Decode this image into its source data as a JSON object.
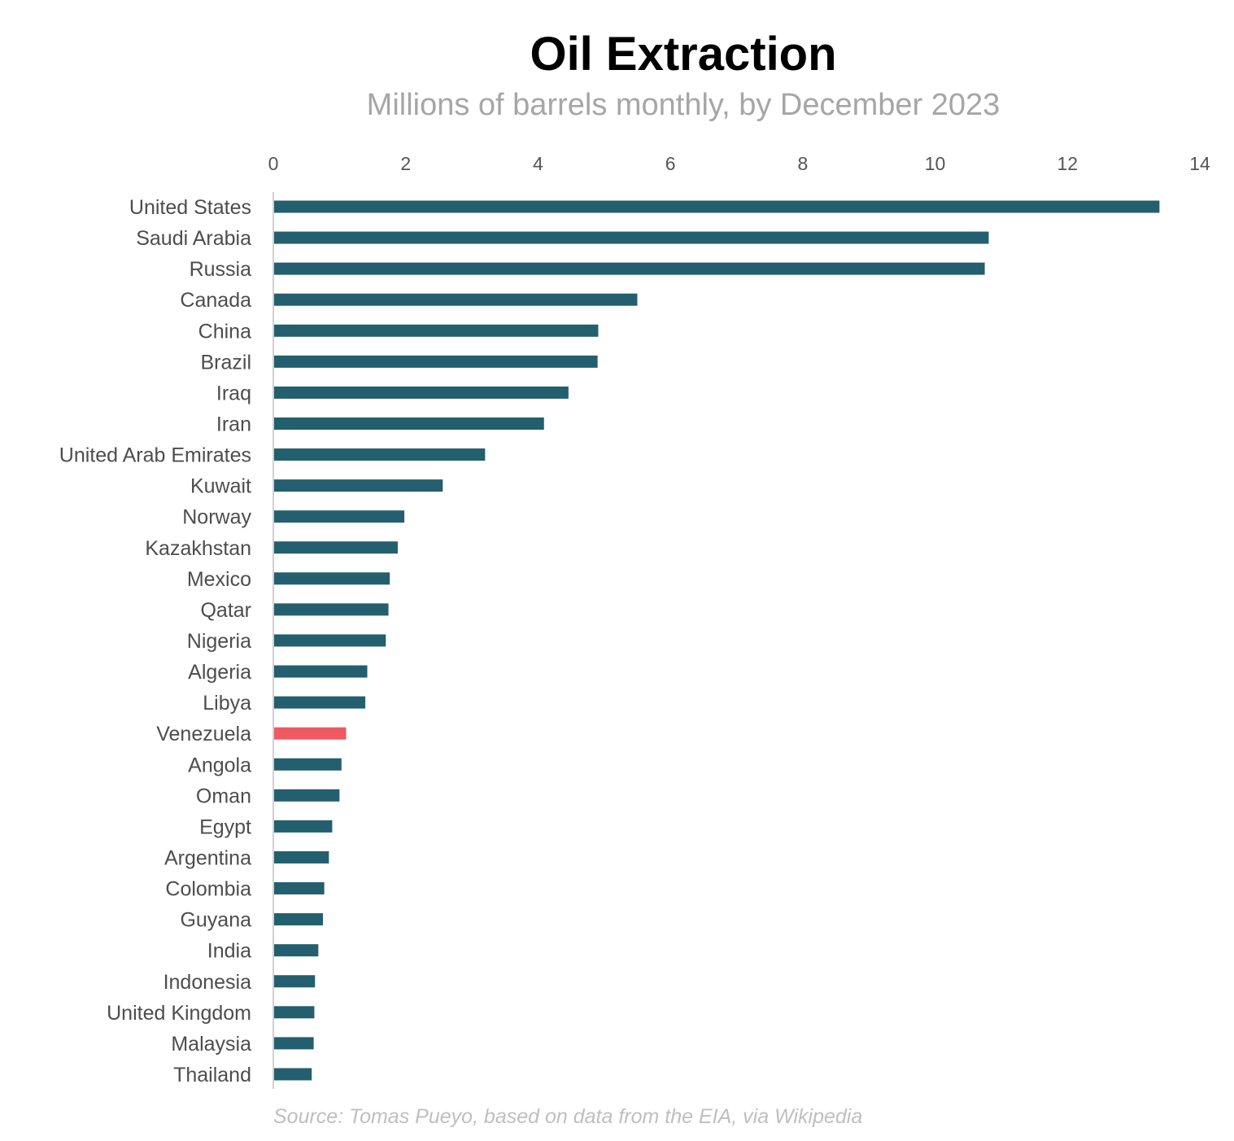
{
  "chart_data": {
    "type": "bar",
    "orientation": "horizontal",
    "title": "Oil Extraction",
    "subtitle": "Millions of barrels monthly, by December 2023",
    "source": "Source: Tomas Pueyo, based on data from the EIA, via Wikipedia",
    "xlabel": "",
    "ylabel": "",
    "xlim": [
      0,
      14
    ],
    "x_ticks": [
      "0",
      "2",
      "4",
      "6",
      "8",
      "10",
      "12",
      "14"
    ],
    "x_tick_values": [
      0,
      2,
      4,
      6,
      8,
      10,
      12,
      14
    ],
    "x_axis_position": "top",
    "grid": false,
    "legend": "none",
    "categories": [
      "United States",
      "Saudi Arabia",
      "Russia",
      "Canada",
      "China",
      "Brazil",
      "Iraq",
      "Iran",
      "United Arab Emirates",
      "Kuwait",
      "Norway",
      "Kazakhstan",
      "Mexico",
      "Qatar",
      "Nigeria",
      "Algeria",
      "Libya",
      "Venezuela",
      "Angola",
      "Oman",
      "Egypt",
      "Argentina",
      "Colombia",
      "Guyana",
      "India",
      "Indonesia",
      "United Kingdom",
      "Malaysia",
      "Thailand"
    ],
    "values": [
      13.39,
      10.81,
      10.75,
      5.5,
      4.91,
      4.9,
      4.46,
      4.09,
      3.2,
      2.56,
      1.98,
      1.88,
      1.76,
      1.74,
      1.7,
      1.42,
      1.39,
      1.1,
      1.03,
      1.0,
      0.89,
      0.84,
      0.77,
      0.75,
      0.68,
      0.63,
      0.62,
      0.61,
      0.58
    ],
    "highlight_category": "Venezuela",
    "colors": {
      "bar": "#235f6e",
      "highlight": "#ef5a62"
    }
  }
}
